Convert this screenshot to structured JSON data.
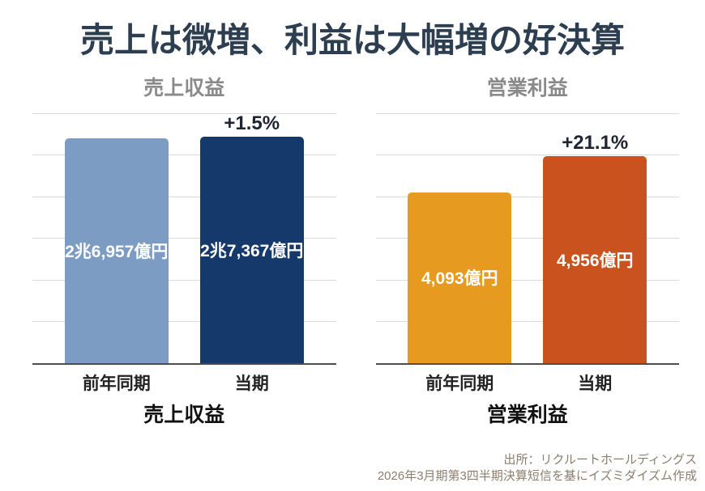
{
  "page": {
    "title": "売上は微増、利益は大幅増の好決算",
    "source_line1": "出所：リクルートホールディングス",
    "source_line2": "2026年3月期第3四半期決算短信を基にイズミダイズム作成"
  },
  "colors": {
    "title_text": "#2d3e50",
    "subtitle_text": "#8a8a8a",
    "change_label_text": "#1e2430",
    "gridline": "#d9d9d9",
    "axis_line": "#4d4d4d",
    "bar_value_text": "#ffffff",
    "source_text": "#8d7d6d",
    "revenue_prev_bar": "#7d9cc4",
    "revenue_curr_bar": "#15396b",
    "profit_prev_bar": "#e69b20",
    "profit_curr_bar": "#ca521e"
  },
  "chart_data": [
    {
      "type": "bar",
      "title": "売上収益",
      "axis_title": "売上収益",
      "categories": [
        "前年同期",
        "当期"
      ],
      "values": [
        26957,
        27367
      ],
      "unit": "億円",
      "value_labels": [
        "2兆6,957億円",
        "2兆7,367億円"
      ],
      "change_label": "+1.5%",
      "ylim": [
        0,
        30000
      ],
      "grid": true,
      "grid_intervals": 6,
      "legend_position": "none",
      "bar_colors": [
        "#7d9cc4",
        "#15396b"
      ]
    },
    {
      "type": "bar",
      "title": "営業利益",
      "axis_title": "営業利益",
      "categories": [
        "前年同期",
        "当期"
      ],
      "values": [
        4093,
        4956
      ],
      "unit": "億円",
      "value_labels": [
        "4,093億円",
        "4,956億円"
      ],
      "change_label": "+21.1%",
      "ylim": [
        0,
        6000
      ],
      "grid": true,
      "grid_intervals": 6,
      "legend_position": "none",
      "bar_colors": [
        "#e69b20",
        "#ca521e"
      ]
    }
  ]
}
